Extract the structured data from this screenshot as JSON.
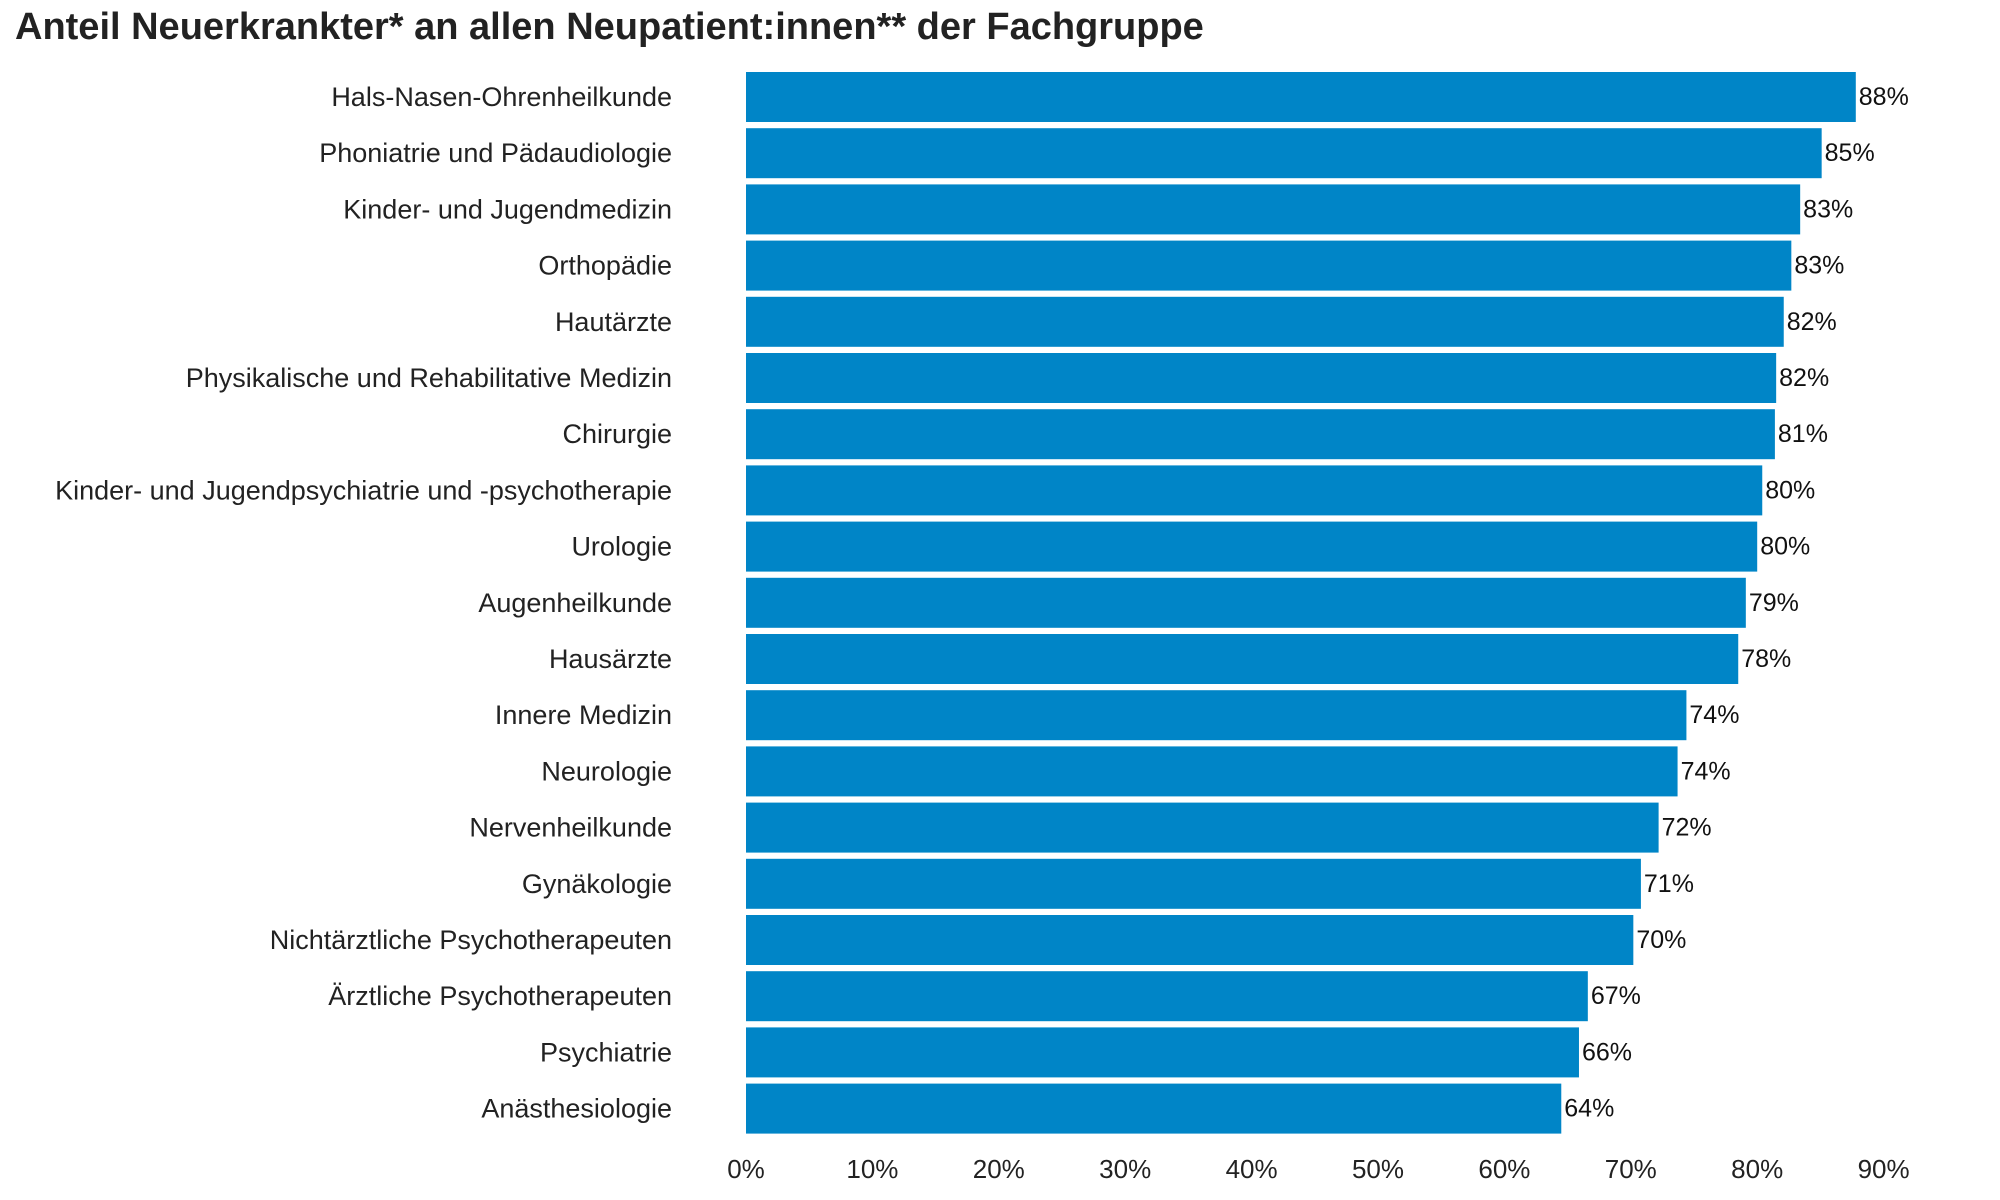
{
  "chart_data": {
    "type": "bar",
    "orientation": "horizontal",
    "title": "Anteil Neuerkrankter* an allen Neupatient:innen** der Fachgruppe",
    "categories": [
      "Hals-Nasen-Ohrenheilkunde",
      "Phoniatrie und Pädaudiologie",
      "Kinder- und Jugendmedizin",
      "Orthopädie",
      "Hautärzte",
      "Physikalische und Rehabilitative Medizin",
      "Chirurgie",
      "Kinder- und Jugendpsychiatrie und -psychotherapie",
      "Urologie",
      "Augenheilkunde",
      "Hausärzte",
      "Innere Medizin",
      "Neurologie",
      "Nervenheilkunde",
      "Gynäkologie",
      "Nichtärztliche Psychotherapeuten",
      "Ärztliche Psychotherapeuten",
      "Psychiatrie",
      "Anästhesiologie"
    ],
    "values": [
      87.8,
      85.1,
      83.4,
      82.7,
      82.1,
      81.5,
      81.4,
      80.4,
      80.0,
      79.1,
      78.5,
      74.4,
      73.7,
      72.2,
      70.8,
      70.2,
      66.6,
      65.9,
      64.5
    ],
    "value_labels": [
      "88%",
      "85%",
      "83%",
      "83%",
      "82%",
      "82%",
      "81%",
      "80%",
      "80%",
      "79%",
      "78%",
      "74%",
      "74%",
      "72%",
      "71%",
      "70%",
      "67%",
      "66%",
      "64%"
    ],
    "xlim": [
      0,
      90
    ],
    "xticks": [
      "0%",
      "10%",
      "20%",
      "30%",
      "40%",
      "50%",
      "60%",
      "70%",
      "80%",
      "90%"
    ],
    "grid": false,
    "bar_color": "#0085C7"
  }
}
